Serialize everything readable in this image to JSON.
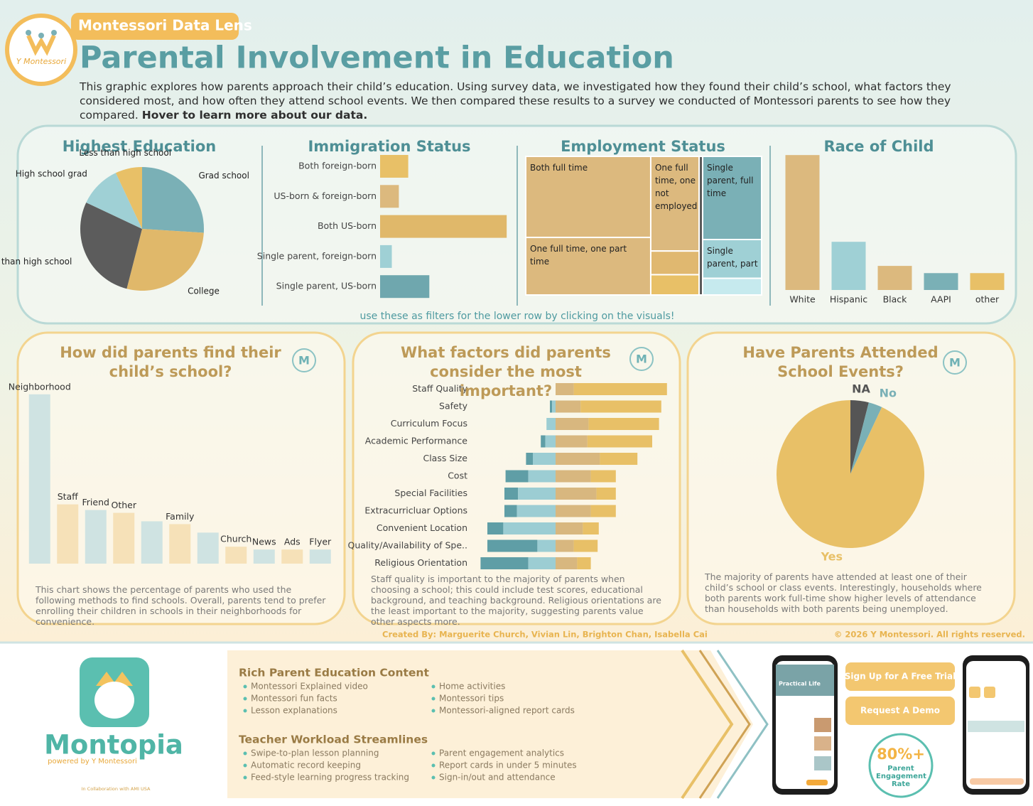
{
  "header": {
    "logo_text": "Y Montessori",
    "brand": "Montessori Data Lens",
    "title": "Parental Involvement in Education",
    "description": "This graphic explores how parents approach their child’s education. Using survey data, we investigated how they found their child’s school, what factors they considered most, and how often they attend school events. We then compared these results to a survey we conducted of Montessori parents to see how they compared.",
    "hover_link": "Hover to learn more about our data."
  },
  "filter_note": "use these as filters for the lower row by clicking on the visuals!",
  "chart_data": [
    {
      "type": "pie",
      "title": "Highest Education",
      "categories": [
        "Grad school",
        "College",
        "More than high school",
        "High school grad",
        "Less than high school"
      ],
      "values": [
        26,
        28,
        28,
        11,
        7
      ],
      "colors": [
        "#7ab0b6",
        "#e0b86a",
        "#5c5c5c",
        "#9fd0d5",
        "#e8c067"
      ]
    },
    {
      "type": "bar",
      "orientation": "horizontal",
      "title": "Immigration Status",
      "categories": [
        "Both foreign-born",
        "US-born & foreign-born",
        "Both US-born",
        "Single parent, foreign-born",
        "Single parent, US-born"
      ],
      "values": [
        12,
        8,
        54,
        5,
        21
      ],
      "colors": [
        "#e8c067",
        "#dcb97e",
        "#e0b86a",
        "#9fd0d5",
        "#6fa7ae"
      ]
    },
    {
      "type": "treemap",
      "title": "Employment Status",
      "categories": [
        "Both full time",
        "One full time, one not employed",
        "Single parent, full time",
        "One full time, one part time",
        "Single parent, part",
        null,
        null,
        null,
        null
      ],
      "values": [
        31,
        14,
        15,
        22,
        7,
        3.5,
        3,
        1.5,
        3
      ],
      "colors": [
        "#dcb97e",
        "#dcb97e",
        "#7ab0b6",
        "#dcb97e",
        "#9fd0d5",
        "#e0b870",
        "#e8c067",
        "#5a5a5a",
        "#c6eaee"
      ]
    },
    {
      "type": "bar",
      "orientation": "vertical",
      "title": "Race of Child",
      "categories": [
        "White",
        "Hispanic",
        "Black",
        "AAPI",
        "other"
      ],
      "values": [
        56,
        20,
        10,
        7,
        7
      ],
      "colors": [
        "#dcb97e",
        "#9fd0d5",
        "#dcb97e",
        "#7ab0b6",
        "#e8c067"
      ]
    },
    {
      "type": "bar",
      "orientation": "vertical",
      "title": "How did parents find their child’s school?",
      "badge": "M",
      "categories": [
        "Neighborhood",
        "Staff",
        "Friend",
        "Other",
        null,
        "Family",
        null,
        "Church",
        "News",
        "Ads",
        "Flyer"
      ],
      "values": [
        60,
        21,
        19,
        18,
        15,
        14,
        11,
        6,
        5,
        5,
        5
      ],
      "colors": [
        "#cfe3e2",
        "#f6e1b8",
        "#cfe3e2",
        "#f6e1b8",
        "#cfe3e2",
        "#f6e1b8",
        "#cfe3e2",
        "#f6e1b8",
        "#cfe3e2",
        "#f6e1b8",
        "#cfe3e2"
      ],
      "caption": "This chart shows the percentage of parents who used the following methods to find schools. Overall, parents tend to prefer enrolling their children in schools in their neighborhoods for convenience."
    },
    {
      "type": "diverging_bar",
      "title": "What factors did parents consider the most important?",
      "badge": "M",
      "categories": [
        "Staff Quality",
        "Safety",
        "Curriculum Focus",
        "Academic Performance",
        "Class Size",
        "Cost",
        "Special Facilities",
        "Extracurricluar Options",
        "Convenient Location",
        "Quality/Availability of Spe..",
        "Religious Orientation"
      ],
      "series": [
        {
          "color": "#5f9ea6",
          "values": [
            0,
            2,
            0,
            4,
            6,
            20,
            12,
            11,
            14,
            44,
            42
          ]
        },
        {
          "color": "#9ccdd3",
          "values": [
            0,
            3,
            8,
            9,
            20,
            24,
            33,
            34,
            46,
            16,
            24
          ]
        },
        {
          "color": "#d8b77f",
          "values": [
            16,
            22,
            29,
            28,
            39,
            31,
            36,
            31,
            24,
            16,
            19
          ]
        },
        {
          "color": "#e8c067",
          "values": [
            82,
            71,
            62,
            57,
            33,
            22,
            17,
            22,
            14,
            21,
            12
          ]
        }
      ],
      "caption": "Staff quality is important to the majority of parents when choosing a school; this could include test scores, educational background, and teaching background. Religious orientations are the least important to the majority, suggesting parents value other aspects more."
    },
    {
      "type": "pie",
      "title": "Have Parents Attended School Events?",
      "badge": "M",
      "categories": [
        "NA",
        "No",
        "Yes"
      ],
      "values": [
        4,
        3,
        93
      ],
      "colors": [
        "#555555",
        "#7ab0b6",
        "#e8c067"
      ],
      "caption": "The majority of parents have attended at least one of their child’s school or class events. Interestingly, households where both parents work full-time show higher levels of attendance than households with both parents being unemployed."
    }
  ],
  "credits": {
    "created_by": "Created By: Marguerite Church, Vivian Lin, Brighton Chan, Isabella Cai",
    "copyright": "© 2026 Y Montessori. All rights reserved."
  },
  "banner": {
    "app_name": "Montopia",
    "powered_by": "powered by Y Montessori",
    "collaboration": "In Collaboration with AMI USA",
    "sections": [
      {
        "heading": "Rich Parent Education Content",
        "items": [
          "Montessori Explained video",
          "Montessori fun facts",
          "Lesson explanations",
          "Home activities",
          "Montessori tips",
          "Montessori-aligned report cards"
        ]
      },
      {
        "heading": "Teacher Workload Streamlines",
        "items": [
          "Swipe-to-plan lesson planning",
          "Automatic record keeping",
          "Feed-style learning progress tracking",
          "Parent engagement analytics",
          "Report cards in under 5 minutes",
          "Sign-in/out and attendance"
        ]
      }
    ],
    "buttons": [
      "Sign Up for A Free Trial",
      "Request A Demo"
    ],
    "stat": {
      "value": "80%+",
      "label": "Parent Engagement Rate"
    },
    "phone_heading": "Practical Life"
  }
}
